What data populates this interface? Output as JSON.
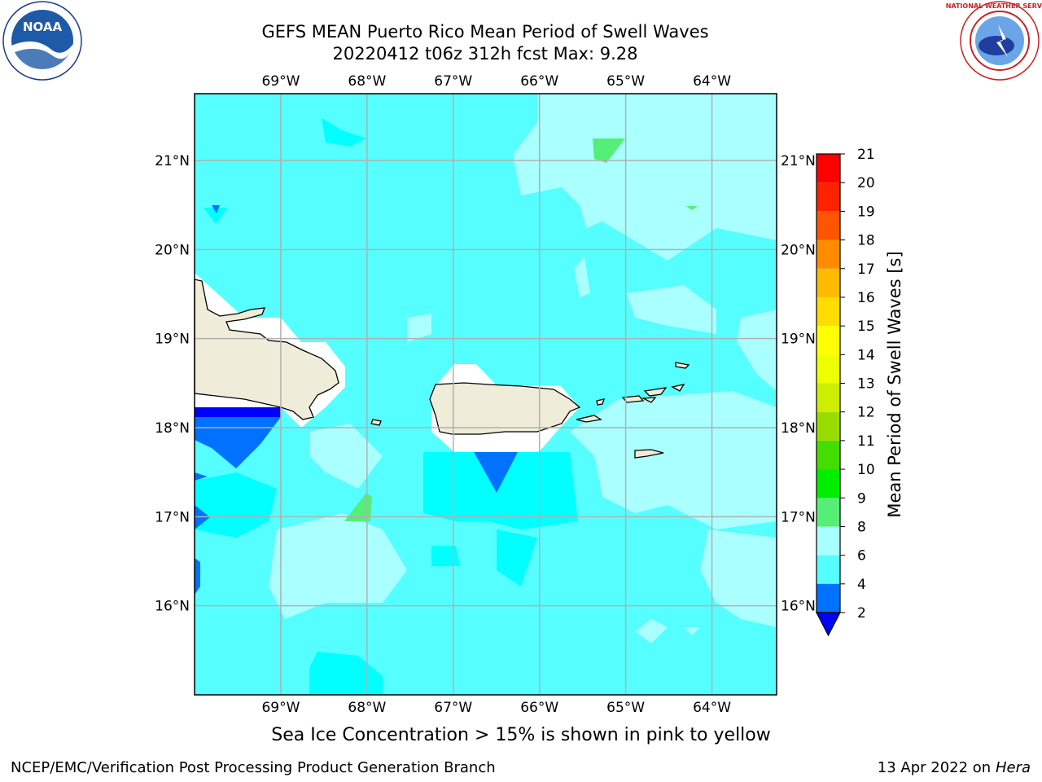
{
  "header": {
    "title_line1": "GEFS MEAN Puerto Rico Mean Period of Swell Waves",
    "title_line2": "20220412 t06z 312h fcst   Max: 9.28"
  },
  "logos": {
    "left": "noaa-logo",
    "right": "nws-logo",
    "left_text": "NOAA",
    "right_text": "NATIONAL WEATHER SERVICE"
  },
  "map": {
    "lon_labels": [
      "69°W",
      "68°W",
      "67°W",
      "66°W",
      "65°W",
      "64°W"
    ],
    "lat_labels": [
      "21°N",
      "20°N",
      "19°N",
      "18°N",
      "17°N",
      "16°N"
    ],
    "extent": {
      "lon_min": -70.0,
      "lon_max": -63.25,
      "lat_min": 15.0,
      "lat_max": 21.75
    },
    "ocean_base_color": "#55ffff",
    "land_color": "#efedd9"
  },
  "colorbar": {
    "label": "Mean Period of Swell Waves [s]",
    "ticks": [
      "2",
      "4",
      "6",
      "8",
      "9",
      "10",
      "11",
      "12",
      "13",
      "14",
      "15",
      "16",
      "17",
      "18",
      "19",
      "20",
      "21"
    ],
    "colors": [
      "#0072ff",
      "#00ffff",
      "#55ffff",
      "#aaffff",
      "#55ee77",
      "#00ee00",
      "#44dd00",
      "#99dd00",
      "#ccee00",
      "#eeff00",
      "#ffff00",
      "#ffdd00",
      "#ffbb00",
      "#ff8c00",
      "#ff5500",
      "#ff2200",
      "#ff0000"
    ],
    "under_color": "#0000ff"
  },
  "subtitle": "Sea Ice Concentration > 15% is shown in pink to yellow",
  "footer": {
    "left": "NCEP/EMC/Verification Post Processing Product Generation Branch",
    "right_prefix": "13 Apr 2022 on ",
    "right_host": "Hera"
  }
}
